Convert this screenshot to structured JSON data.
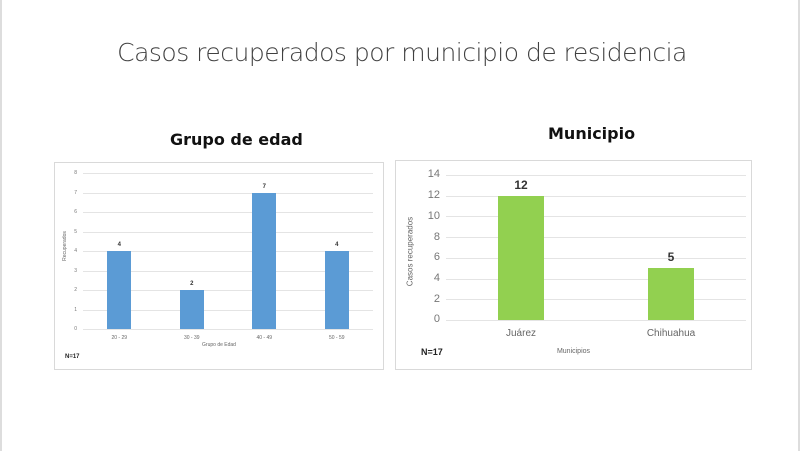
{
  "slide_title": "Casos recuperados por municipio de residencia",
  "chart_data": [
    {
      "type": "bar",
      "title": "Grupo de edad",
      "categories": [
        "20 - 29",
        "30 - 39",
        "40 - 49",
        "50 - 59"
      ],
      "values": [
        4,
        2,
        7,
        4
      ],
      "xlabel": "Grupo de Edad",
      "ylabel": "Recuperados",
      "ylim": [
        0,
        8
      ],
      "yticks": [
        0,
        1,
        2,
        3,
        4,
        5,
        6,
        7,
        8
      ],
      "grid": true,
      "color": "#5b9bd5",
      "note": "N=17"
    },
    {
      "type": "bar",
      "title": "Municipio",
      "categories": [
        "Juárez",
        "Chihuahua"
      ],
      "values": [
        12,
        5
      ],
      "xlabel": "Municipios",
      "ylabel": "Casos recuperados",
      "ylim": [
        0,
        14
      ],
      "yticks": [
        0,
        2,
        4,
        6,
        8,
        10,
        12,
        14
      ],
      "grid": true,
      "color": "#92d050",
      "note": "N=17"
    }
  ]
}
